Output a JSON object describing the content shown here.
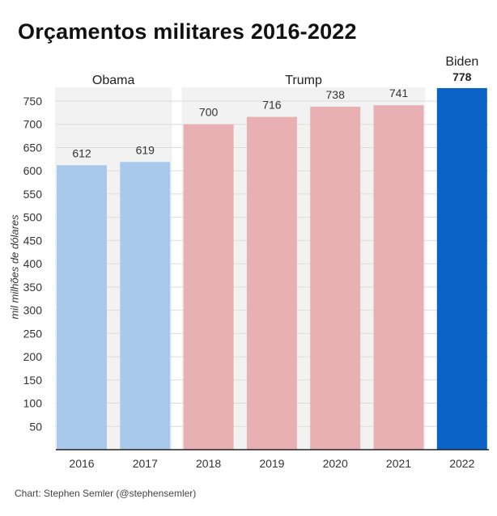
{
  "chart_data": {
    "type": "bar",
    "title": "Orçamentos militares 2016-2022",
    "ylabel": "mil milhões de dólares",
    "xlabel": "",
    "categories": [
      "2016",
      "2017",
      "2018",
      "2019",
      "2020",
      "2021",
      "2022"
    ],
    "values": [
      612,
      619,
      700,
      716,
      738,
      741,
      778
    ],
    "value_labels": [
      "612",
      "619",
      "700",
      "716",
      "738",
      "741",
      "778"
    ],
    "yticks": [
      50,
      100,
      150,
      200,
      250,
      300,
      350,
      400,
      450,
      500,
      550,
      600,
      650,
      700,
      750
    ],
    "ylim": [
      0,
      780
    ],
    "grid": true,
    "groups": [
      {
        "name": "Obama",
        "categories": [
          "2016",
          "2017"
        ],
        "color": "#a8c9ea",
        "band": "#f2f2f2"
      },
      {
        "name": "Trump",
        "categories": [
          "2018",
          "2019",
          "2020",
          "2021"
        ],
        "color": "#e8b0b2",
        "band": "#f2f2f2"
      },
      {
        "name": "Biden",
        "categories": [
          "2022"
        ],
        "color": "#0a63c6",
        "band": "none",
        "emphasis": true
      }
    ]
  },
  "source": "Chart: Stephen Semler (@stephensemler)"
}
